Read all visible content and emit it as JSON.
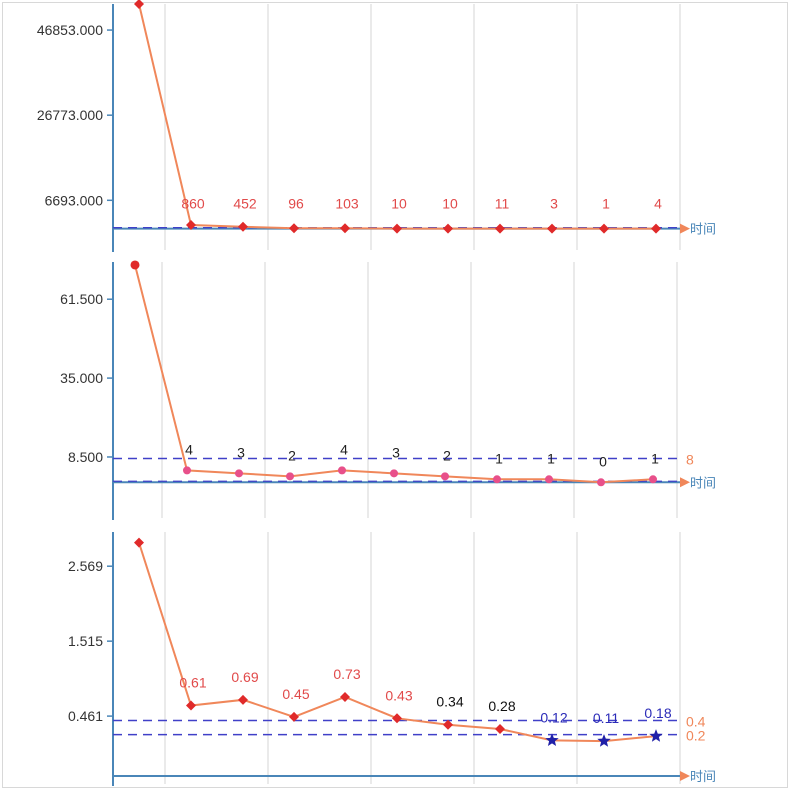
{
  "chart_data": [
    {
      "type": "line",
      "y_ticks": [
        "46853.000",
        "26773.000",
        "6693.000"
      ],
      "y_tick_values": [
        46853,
        26773,
        6693
      ],
      "ylim": [
        -5500,
        53000
      ],
      "x_axis_label": "时间",
      "grid": true,
      "series": [
        {
          "values": [
            53000,
            860,
            452,
            96,
            103,
            10,
            10,
            11,
            3,
            1,
            4
          ],
          "point_labels": [
            "",
            "860",
            "452",
            "96",
            "103",
            "10",
            "10",
            "11",
            "3",
            "1",
            "4"
          ],
          "label_colors": [
            "",
            "#e14a4a",
            "#e14a4a",
            "#e14a4a",
            "#e14a4a",
            "#e14a4a",
            "#e14a4a",
            "#e14a4a",
            "#e14a4a",
            "#e14a4a",
            "#e14a4a"
          ],
          "marker_color": "#e02a2a",
          "line_color": "#f0875a"
        }
      ],
      "reference_lines": [
        {
          "value": 0,
          "label": ""
        }
      ]
    },
    {
      "type": "line",
      "y_ticks": [
        "61.500",
        "35.000",
        "8.500"
      ],
      "y_tick_values": [
        61.5,
        35.0,
        8.5
      ],
      "ylim": [
        -12,
        74
      ],
      "x_axis_label": "时间",
      "grid": true,
      "series": [
        {
          "values": [
            73,
            4,
            3,
            2,
            4,
            3,
            2,
            1,
            1,
            0,
            1
          ],
          "point_labels": [
            "",
            "4",
            "3",
            "2",
            "4",
            "3",
            "2",
            "1",
            "1",
            "0",
            "1"
          ],
          "label_colors": [
            "",
            "#222222",
            "#222222",
            "#222222",
            "#222222",
            "#222222",
            "#222222",
            "#222222",
            "#222222",
            "#222222",
            "#222222"
          ],
          "marker_color": "#e8508a",
          "line_color": "#f0875a"
        }
      ],
      "reference_lines": [
        {
          "value": 8,
          "label": "8"
        },
        {
          "value": 0,
          "label": ""
        }
      ]
    },
    {
      "type": "line",
      "y_ticks": [
        "2.569",
        "1.515",
        "0.461"
      ],
      "y_tick_values": [
        2.569,
        1.515,
        0.461
      ],
      "ylim": [
        -0.55,
        3.05
      ],
      "x_axis_label": "时间",
      "grid": true,
      "series": [
        {
          "values": [
            2.9,
            0.61,
            0.69,
            0.45,
            0.73,
            0.43,
            0.34,
            0.28,
            0.12,
            0.11,
            0.18
          ],
          "point_labels": [
            "",
            "0.61",
            "0.69",
            "0.45",
            "0.73",
            "0.43",
            "0.34",
            "0.28",
            "0.12",
            "0.11",
            "0.18"
          ],
          "label_colors": [
            "",
            "#e14a4a",
            "#e14a4a",
            "#e14a4a",
            "#e14a4a",
            "#e14a4a",
            "#111111",
            "#111111",
            "#2b2bb8",
            "#2b2bb8",
            "#2b2bb8"
          ],
          "marker_color": "#e02a2a",
          "line_color": "#f0875a"
        }
      ],
      "reference_lines": [
        {
          "value": 0.4,
          "label": "0.4"
        },
        {
          "value": 0.2,
          "label": "0.2"
        }
      ]
    }
  ]
}
